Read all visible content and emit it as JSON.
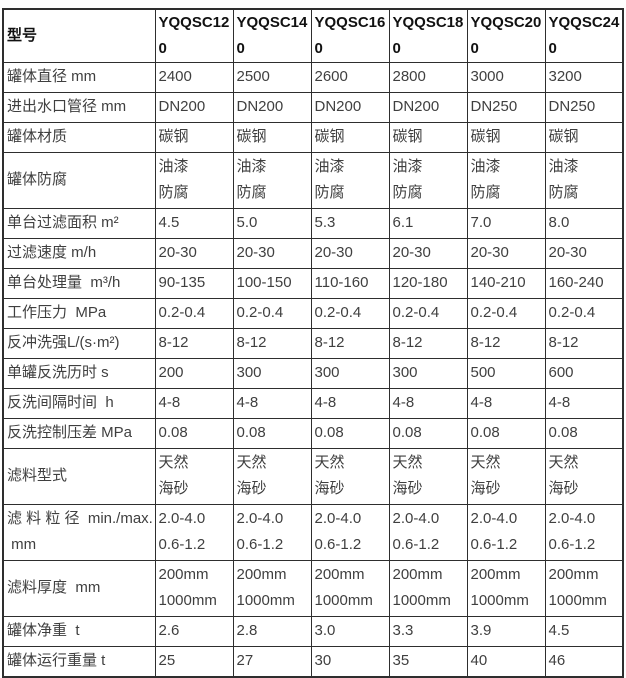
{
  "colors": {
    "border": "#2e2e2e",
    "header_text": "#111111",
    "body_text": "#3f3f3f",
    "background": "#ffffff"
  },
  "table": {
    "header": {
      "col0": "型号",
      "models": [
        "YQQSC120",
        "YQQSC140",
        "YQQSC160",
        "YQQSC180",
        "YQQSC200",
        "YQQSC240"
      ]
    },
    "rows": [
      {
        "label": "罐体直径 mm",
        "values": [
          "2400",
          "2500",
          "2600",
          "2800",
          "3000",
          "3200"
        ]
      },
      {
        "label": "进出水口管径 mm",
        "values": [
          "DN200",
          "DN200",
          "DN200",
          "DN200",
          "DN250",
          "DN250"
        ]
      },
      {
        "label": "罐体材质",
        "values": [
          "碳钢",
          "碳钢",
          "碳钢",
          "碳钢",
          "碳钢",
          "碳钢"
        ]
      },
      {
        "label": "罐体防腐",
        "values": [
          "油漆\n防腐",
          "油漆\n防腐",
          "油漆\n防腐",
          "油漆\n防腐",
          "油漆\n防腐",
          "油漆\n防腐"
        ]
      },
      {
        "label": "单台过滤面积 m²",
        "values": [
          "4.5",
          "5.0",
          "5.3",
          "6.1",
          "7.0",
          "8.0"
        ]
      },
      {
        "label": "过滤速度 m/h",
        "values": [
          "20-30",
          "20-30",
          "20-30",
          "20-30",
          "20-30",
          "20-30"
        ]
      },
      {
        "label": "单台处理量  m³/h",
        "values": [
          "90-135",
          "100-150",
          "110-160",
          "120-180",
          "140-210",
          "160-240"
        ]
      },
      {
        "label": "工作压力  MPa",
        "values": [
          "0.2-0.4",
          "0.2-0.4",
          "0.2-0.4",
          "0.2-0.4",
          "0.2-0.4",
          "0.2-0.4"
        ]
      },
      {
        "label": "反冲洗强L/(s·m²)",
        "values": [
          "8-12",
          "8-12",
          "8-12",
          "8-12",
          "8-12",
          "8-12"
        ]
      },
      {
        "label": "单罐反洗历时 s",
        "values": [
          "200",
          "300",
          "300",
          "300",
          "500",
          "600"
        ]
      },
      {
        "label": "反洗间隔时间  h",
        "values": [
          "4-8",
          "4-8",
          "4-8",
          "4-8",
          "4-8",
          "4-8"
        ]
      },
      {
        "label": "反洗控制压差 MPa",
        "values": [
          "0.08",
          "0.08",
          "0.08",
          "0.08",
          "0.08",
          "0.08"
        ]
      },
      {
        "label": "滤料型式",
        "values": [
          "天然\n海砂",
          "天然\n海砂",
          "天然\n海砂",
          "天然\n海砂",
          "天然\n海砂",
          "天然\n海砂"
        ]
      },
      {
        "label": "滤 料 粒 径  min./max.\n mm",
        "values": [
          "2.0-4.0\n0.6-1.2",
          "2.0-4.0\n0.6-1.2",
          "2.0-4.0\n0.6-1.2",
          "2.0-4.0\n0.6-1.2",
          "2.0-4.0\n0.6-1.2",
          "2.0-4.0\n0.6-1.2"
        ]
      },
      {
        "label": "滤料厚度  mm",
        "values": [
          "200mm\n1000mm",
          "200mm\n1000mm",
          "200mm\n1000mm",
          "200mm\n1000mm",
          "200mm\n1000mm",
          "200mm\n1000mm"
        ]
      },
      {
        "label": "罐体净重  t",
        "values": [
          "2.6",
          "2.8",
          "3.0",
          "3.3",
          "3.9",
          "4.5"
        ]
      },
      {
        "label": "罐体运行重量 t",
        "values": [
          "25",
          "27",
          "30",
          "35",
          "40",
          "46"
        ]
      }
    ]
  }
}
